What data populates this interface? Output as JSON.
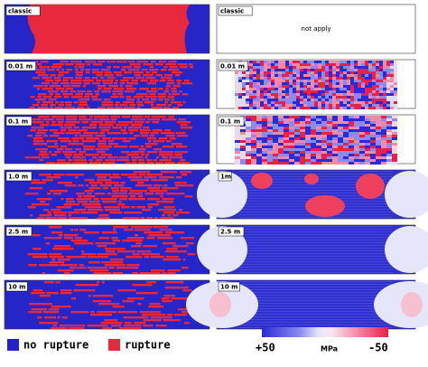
{
  "left_panels": [
    {
      "label": "classic"
    },
    {
      "label": "0.01 m"
    },
    {
      "label": "0.1 m"
    },
    {
      "label": "1.0 m"
    },
    {
      "label": "2.5 m"
    },
    {
      "label": "10 m"
    }
  ],
  "right_panels": [
    {
      "label": "classic",
      "note": "not apply"
    },
    {
      "label": "0.01 m"
    },
    {
      "label": "0.1 m"
    },
    {
      "label": "1m"
    },
    {
      "label": "2.5 m"
    },
    {
      "label": "10 m"
    }
  ],
  "legend": {
    "no_rupture": "no rupture",
    "rupture": "rupture"
  },
  "colorbar": {
    "max_label": "+50",
    "unit": "MPa",
    "min_label": "-50"
  }
}
